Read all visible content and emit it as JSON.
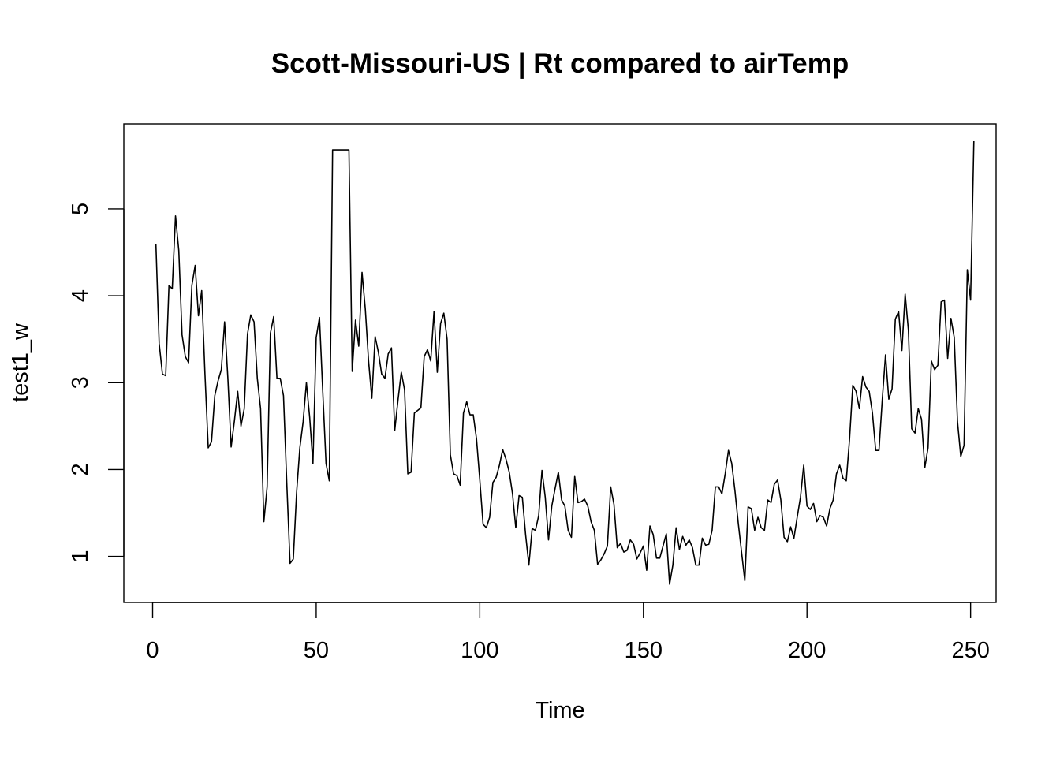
{
  "chart_data": {
    "type": "line",
    "title": "Scott-Missouri-US | Rt compared to airTemp",
    "xlabel": "Time",
    "ylabel": "test1_w",
    "xlim": [
      -8.8,
      257.8
    ],
    "ylim": [
      0.47,
      5.98
    ],
    "xticks": [
      0,
      50,
      100,
      150,
      200,
      250
    ],
    "yticks": [
      1,
      2,
      3,
      4,
      5
    ],
    "grid": false,
    "legend": "none",
    "line_color": "#000000",
    "series": [
      {
        "x_start": 1,
        "values": [
          4.6,
          3.45,
          3.1,
          3.08,
          4.12,
          4.08,
          4.92,
          4.52,
          3.55,
          3.3,
          3.23,
          4.12,
          4.35,
          3.77,
          4.06,
          3.1,
          2.25,
          2.32,
          2.85,
          3.02,
          3.15,
          3.7,
          3.05,
          2.26,
          2.56,
          2.9,
          2.5,
          2.7,
          3.56,
          3.78,
          3.7,
          3.05,
          2.7,
          1.4,
          1.8,
          3.57,
          3.76,
          3.05,
          3.05,
          2.85,
          1.85,
          0.92,
          0.97,
          1.73,
          2.25,
          2.55,
          3.0,
          2.6,
          2.07,
          3.52,
          3.75,
          2.9,
          2.07,
          1.87,
          5.68,
          5.68,
          5.68,
          5.68,
          5.68,
          5.68,
          3.13,
          3.72,
          3.42,
          4.27,
          3.85,
          3.25,
          2.82,
          3.53,
          3.35,
          3.1,
          3.05,
          3.33,
          3.4,
          2.45,
          2.8,
          3.12,
          2.92,
          1.95,
          1.97,
          2.65,
          2.68,
          2.71,
          3.3,
          3.38,
          3.25,
          3.82,
          3.12,
          3.68,
          3.8,
          3.5,
          2.17,
          1.95,
          1.93,
          1.82,
          2.65,
          2.78,
          2.63,
          2.63,
          2.35,
          1.88,
          1.37,
          1.33,
          1.45,
          1.85,
          1.91,
          2.05,
          2.23,
          2.12,
          1.97,
          1.72,
          1.33,
          1.7,
          1.68,
          1.25,
          0.9,
          1.32,
          1.3,
          1.47,
          1.99,
          1.68,
          1.19,
          1.58,
          1.78,
          1.97,
          1.65,
          1.58,
          1.3,
          1.22,
          1.92,
          1.62,
          1.63,
          1.66,
          1.58,
          1.4,
          1.3,
          0.91,
          0.96,
          1.03,
          1.12,
          1.8,
          1.6,
          1.1,
          1.15,
          1.05,
          1.07,
          1.19,
          1.14,
          0.97,
          1.04,
          1.12,
          0.84,
          1.35,
          1.25,
          0.98,
          0.98,
          1.12,
          1.26,
          0.68,
          0.9,
          1.33,
          1.08,
          1.23,
          1.13,
          1.19,
          1.1,
          0.9,
          0.9,
          1.21,
          1.13,
          1.14,
          1.3,
          1.8,
          1.8,
          1.72,
          1.95,
          2.22,
          2.07,
          1.75,
          1.38,
          1.05,
          0.72,
          1.57,
          1.55,
          1.3,
          1.45,
          1.33,
          1.3,
          1.65,
          1.62,
          1.83,
          1.88,
          1.65,
          1.22,
          1.17,
          1.34,
          1.21,
          1.45,
          1.68,
          2.05,
          1.58,
          1.54,
          1.61,
          1.4,
          1.47,
          1.45,
          1.35,
          1.55,
          1.65,
          1.95,
          2.05,
          1.9,
          1.87,
          2.35,
          2.97,
          2.9,
          2.7,
          3.07,
          2.95,
          2.9,
          2.65,
          2.22,
          2.22,
          2.8,
          3.32,
          2.81,
          2.93,
          3.73,
          3.82,
          3.37,
          4.02,
          3.6,
          2.47,
          2.42,
          2.7,
          2.58,
          2.02,
          2.25,
          3.25,
          3.15,
          3.2,
          3.93,
          3.95,
          3.28,
          3.74,
          3.52,
          2.55,
          2.15,
          2.28,
          4.3,
          3.95,
          5.78
        ]
      }
    ]
  }
}
